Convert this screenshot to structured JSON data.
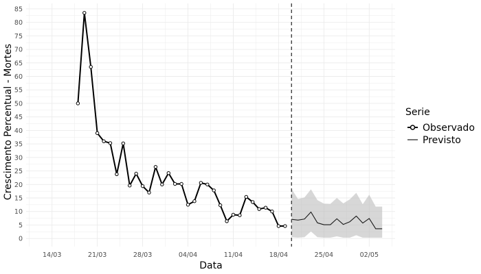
{
  "chart_data": {
    "type": "line",
    "xlabel": "Data",
    "ylabel": "Crescimento Percentual - Mortes",
    "x_axis_type": "date",
    "xlim": [
      "2020-03-10",
      "2020-05-06"
    ],
    "ylim": [
      -3,
      87
    ],
    "grid": true,
    "x_ticks": [
      {
        "date": "2020-03-14",
        "label": "14/03"
      },
      {
        "date": "2020-03-21",
        "label": "21/03"
      },
      {
        "date": "2020-03-28",
        "label": "28/03"
      },
      {
        "date": "2020-04-04",
        "label": "04/04"
      },
      {
        "date": "2020-04-11",
        "label": "11/04"
      },
      {
        "date": "2020-04-18",
        "label": "18/04"
      },
      {
        "date": "2020-04-25",
        "label": "25/04"
      },
      {
        "date": "2020-05-02",
        "label": "02/05"
      }
    ],
    "y_ticks": [
      0,
      5,
      10,
      15,
      20,
      25,
      30,
      35,
      40,
      45,
      50,
      55,
      60,
      65,
      70,
      75,
      80,
      85
    ],
    "vline_date": "2020-04-20",
    "legend": {
      "title": "Serie",
      "position": "right",
      "entries": [
        {
          "label": "Observado",
          "style": "line-point"
        },
        {
          "label": "Previsto",
          "style": "line"
        }
      ]
    },
    "colors": {
      "observed": "#000000",
      "forecast": "#1a1a1a",
      "band": "#bdbdbd",
      "grid": "#ebebeb",
      "vline": "#333333"
    },
    "series": [
      {
        "name": "Observado",
        "x": [
          "2020-03-18",
          "2020-03-19",
          "2020-03-20",
          "2020-03-21",
          "2020-03-22",
          "2020-03-23",
          "2020-03-24",
          "2020-03-25",
          "2020-03-26",
          "2020-03-27",
          "2020-03-28",
          "2020-03-29",
          "2020-03-30",
          "2020-03-31",
          "2020-04-01",
          "2020-04-02",
          "2020-04-03",
          "2020-04-04",
          "2020-04-05",
          "2020-04-06",
          "2020-04-07",
          "2020-04-08",
          "2020-04-09",
          "2020-04-10",
          "2020-04-11",
          "2020-04-12",
          "2020-04-13",
          "2020-04-14",
          "2020-04-15",
          "2020-04-16",
          "2020-04-17",
          "2020-04-18",
          "2020-04-19"
        ],
        "y": [
          50,
          83.5,
          63.5,
          39,
          36,
          35.3,
          23.8,
          35.2,
          19.6,
          24,
          19.4,
          17,
          26.5,
          20,
          24.2,
          20.2,
          20.2,
          12.5,
          13.8,
          20.6,
          20,
          17.8,
          12.3,
          6.4,
          8.8,
          8.6,
          15.4,
          13.5,
          10.9,
          11.4,
          10,
          4.6,
          4.6
        ]
      },
      {
        "name": "Previsto",
        "x": [
          "2020-04-20",
          "2020-04-21",
          "2020-04-22",
          "2020-04-23",
          "2020-04-24",
          "2020-04-25",
          "2020-04-26",
          "2020-04-27",
          "2020-04-28",
          "2020-04-29",
          "2020-04-30",
          "2020-05-01",
          "2020-05-02",
          "2020-05-03",
          "2020-05-04"
        ],
        "y": [
          7.1,
          6.8,
          7.2,
          9.8,
          5.8,
          5.1,
          5.1,
          7.3,
          5.2,
          6.2,
          8.3,
          5.7,
          7.4,
          3.6,
          3.6
        ],
        "lower": [
          0.5,
          0.3,
          0.5,
          2.6,
          0.5,
          0.3,
          0.3,
          0.8,
          0.3,
          0.3,
          1.2,
          0.3,
          0.3,
          0.3,
          0.3
        ],
        "upper": [
          18.4,
          14.6,
          15.2,
          18.2,
          14.2,
          12.9,
          12.8,
          15.0,
          13.0,
          14.5,
          16.9,
          12.7,
          16.2,
          11.8,
          11.8
        ]
      }
    ]
  }
}
